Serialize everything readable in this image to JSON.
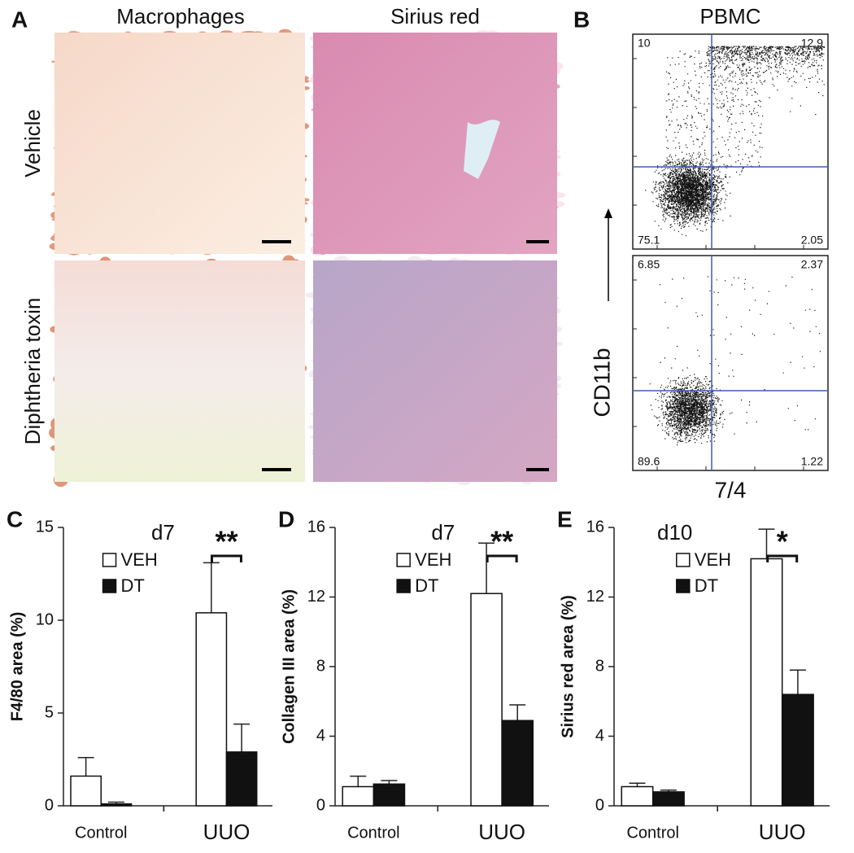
{
  "panels": {
    "A": {
      "label": "A",
      "columns": [
        "Macrophages",
        "Sirius red"
      ],
      "rows": [
        "Vehicle",
        "Diphtheria toxin"
      ]
    },
    "B": {
      "label": "B",
      "title": "PBMC",
      "y_label": "CD11b",
      "x_label": "7/4",
      "plots": [
        {
          "quadrants": [
            10,
            12.9,
            75.1,
            2.05
          ]
        },
        {
          "quadrants": [
            6.85,
            2.37,
            89.6,
            1.22
          ]
        }
      ]
    }
  },
  "chart_data": [
    {
      "panel": "C",
      "type": "bar",
      "period": "d7",
      "significance": "**",
      "ylabel": "F4/80 area (%)",
      "categories": [
        "Control",
        "UUO"
      ],
      "series": [
        {
          "name": "VEH",
          "color": "#ffffff",
          "values": [
            1.6,
            10.4
          ],
          "errors": [
            1.0,
            2.7
          ]
        },
        {
          "name": "DT",
          "color": "#111111",
          "values": [
            0.1,
            2.9
          ],
          "errors": [
            0.1,
            1.5
          ]
        }
      ],
      "ylim": [
        0,
        15
      ],
      "yticks": [
        0,
        5,
        10,
        15
      ]
    },
    {
      "panel": "D",
      "type": "bar",
      "period": "d7",
      "significance": "**",
      "ylabel": "Collagen III area (%)",
      "categories": [
        "Control",
        "UUO"
      ],
      "series": [
        {
          "name": "VEH",
          "color": "#ffffff",
          "values": [
            1.1,
            12.2
          ],
          "errors": [
            0.6,
            2.9
          ]
        },
        {
          "name": "DT",
          "color": "#111111",
          "values": [
            1.25,
            4.9
          ],
          "errors": [
            0.2,
            0.9
          ]
        }
      ],
      "ylim": [
        0,
        16
      ],
      "yticks": [
        0,
        4,
        8,
        12,
        16
      ]
    },
    {
      "panel": "E",
      "type": "bar",
      "period": "d10",
      "significance": "*",
      "ylabel": "Sirius red area (%)",
      "categories": [
        "Control",
        "UUO"
      ],
      "series": [
        {
          "name": "VEH",
          "color": "#ffffff",
          "values": [
            1.1,
            14.2
          ],
          "errors": [
            0.2,
            1.7
          ]
        },
        {
          "name": "DT",
          "color": "#111111",
          "values": [
            0.8,
            6.4
          ],
          "errors": [
            0.1,
            1.4
          ]
        }
      ],
      "ylim": [
        0,
        16
      ],
      "yticks": [
        0,
        4,
        8,
        12,
        16
      ]
    }
  ]
}
